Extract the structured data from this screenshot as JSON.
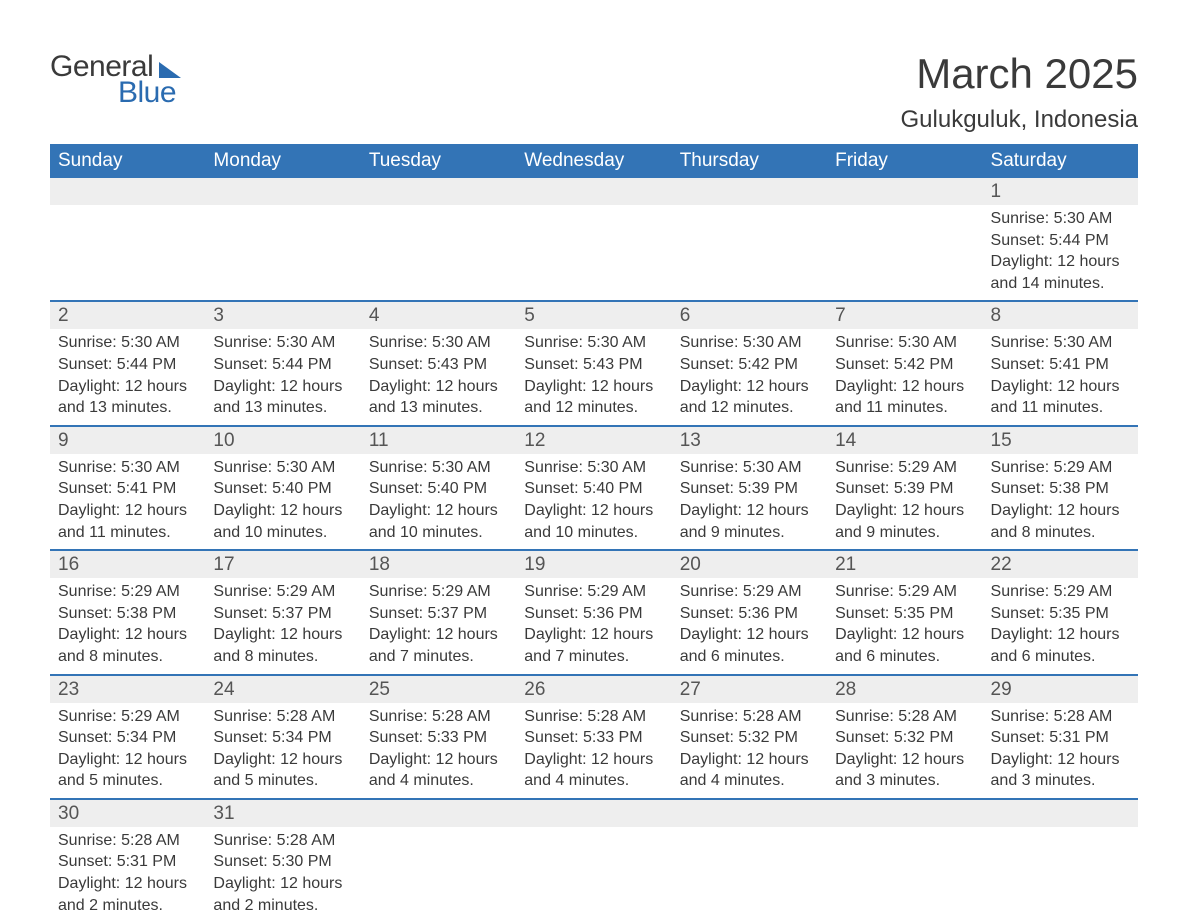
{
  "logo": {
    "text1": "General",
    "text2": "Blue"
  },
  "title": "March 2025",
  "location": "Gulukguluk, Indonesia",
  "colors": {
    "header_bg": "#3374b6",
    "header_text": "#ffffff",
    "daynum_bg": "#eeeeee",
    "border": "#3374b6",
    "text": "#3a3a3a",
    "logo_blue": "#2a6bb0"
  },
  "weekdays": [
    "Sunday",
    "Monday",
    "Tuesday",
    "Wednesday",
    "Thursday",
    "Friday",
    "Saturday"
  ],
  "weeks": [
    {
      "nums": [
        "",
        "",
        "",
        "",
        "",
        "",
        "1"
      ],
      "cells": [
        null,
        null,
        null,
        null,
        null,
        null,
        {
          "sunrise": "Sunrise: 5:30 AM",
          "sunset": "Sunset: 5:44 PM",
          "day1": "Daylight: 12 hours",
          "day2": "and 14 minutes."
        }
      ]
    },
    {
      "nums": [
        "2",
        "3",
        "4",
        "5",
        "6",
        "7",
        "8"
      ],
      "cells": [
        {
          "sunrise": "Sunrise: 5:30 AM",
          "sunset": "Sunset: 5:44 PM",
          "day1": "Daylight: 12 hours",
          "day2": "and 13 minutes."
        },
        {
          "sunrise": "Sunrise: 5:30 AM",
          "sunset": "Sunset: 5:44 PM",
          "day1": "Daylight: 12 hours",
          "day2": "and 13 minutes."
        },
        {
          "sunrise": "Sunrise: 5:30 AM",
          "sunset": "Sunset: 5:43 PM",
          "day1": "Daylight: 12 hours",
          "day2": "and 13 minutes."
        },
        {
          "sunrise": "Sunrise: 5:30 AM",
          "sunset": "Sunset: 5:43 PM",
          "day1": "Daylight: 12 hours",
          "day2": "and 12 minutes."
        },
        {
          "sunrise": "Sunrise: 5:30 AM",
          "sunset": "Sunset: 5:42 PM",
          "day1": "Daylight: 12 hours",
          "day2": "and 12 minutes."
        },
        {
          "sunrise": "Sunrise: 5:30 AM",
          "sunset": "Sunset: 5:42 PM",
          "day1": "Daylight: 12 hours",
          "day2": "and 11 minutes."
        },
        {
          "sunrise": "Sunrise: 5:30 AM",
          "sunset": "Sunset: 5:41 PM",
          "day1": "Daylight: 12 hours",
          "day2": "and 11 minutes."
        }
      ]
    },
    {
      "nums": [
        "9",
        "10",
        "11",
        "12",
        "13",
        "14",
        "15"
      ],
      "cells": [
        {
          "sunrise": "Sunrise: 5:30 AM",
          "sunset": "Sunset: 5:41 PM",
          "day1": "Daylight: 12 hours",
          "day2": "and 11 minutes."
        },
        {
          "sunrise": "Sunrise: 5:30 AM",
          "sunset": "Sunset: 5:40 PM",
          "day1": "Daylight: 12 hours",
          "day2": "and 10 minutes."
        },
        {
          "sunrise": "Sunrise: 5:30 AM",
          "sunset": "Sunset: 5:40 PM",
          "day1": "Daylight: 12 hours",
          "day2": "and 10 minutes."
        },
        {
          "sunrise": "Sunrise: 5:30 AM",
          "sunset": "Sunset: 5:40 PM",
          "day1": "Daylight: 12 hours",
          "day2": "and 10 minutes."
        },
        {
          "sunrise": "Sunrise: 5:30 AM",
          "sunset": "Sunset: 5:39 PM",
          "day1": "Daylight: 12 hours",
          "day2": "and 9 minutes."
        },
        {
          "sunrise": "Sunrise: 5:29 AM",
          "sunset": "Sunset: 5:39 PM",
          "day1": "Daylight: 12 hours",
          "day2": "and 9 minutes."
        },
        {
          "sunrise": "Sunrise: 5:29 AM",
          "sunset": "Sunset: 5:38 PM",
          "day1": "Daylight: 12 hours",
          "day2": "and 8 minutes."
        }
      ]
    },
    {
      "nums": [
        "16",
        "17",
        "18",
        "19",
        "20",
        "21",
        "22"
      ],
      "cells": [
        {
          "sunrise": "Sunrise: 5:29 AM",
          "sunset": "Sunset: 5:38 PM",
          "day1": "Daylight: 12 hours",
          "day2": "and 8 minutes."
        },
        {
          "sunrise": "Sunrise: 5:29 AM",
          "sunset": "Sunset: 5:37 PM",
          "day1": "Daylight: 12 hours",
          "day2": "and 8 minutes."
        },
        {
          "sunrise": "Sunrise: 5:29 AM",
          "sunset": "Sunset: 5:37 PM",
          "day1": "Daylight: 12 hours",
          "day2": "and 7 minutes."
        },
        {
          "sunrise": "Sunrise: 5:29 AM",
          "sunset": "Sunset: 5:36 PM",
          "day1": "Daylight: 12 hours",
          "day2": "and 7 minutes."
        },
        {
          "sunrise": "Sunrise: 5:29 AM",
          "sunset": "Sunset: 5:36 PM",
          "day1": "Daylight: 12 hours",
          "day2": "and 6 minutes."
        },
        {
          "sunrise": "Sunrise: 5:29 AM",
          "sunset": "Sunset: 5:35 PM",
          "day1": "Daylight: 12 hours",
          "day2": "and 6 minutes."
        },
        {
          "sunrise": "Sunrise: 5:29 AM",
          "sunset": "Sunset: 5:35 PM",
          "day1": "Daylight: 12 hours",
          "day2": "and 6 minutes."
        }
      ]
    },
    {
      "nums": [
        "23",
        "24",
        "25",
        "26",
        "27",
        "28",
        "29"
      ],
      "cells": [
        {
          "sunrise": "Sunrise: 5:29 AM",
          "sunset": "Sunset: 5:34 PM",
          "day1": "Daylight: 12 hours",
          "day2": "and 5 minutes."
        },
        {
          "sunrise": "Sunrise: 5:28 AM",
          "sunset": "Sunset: 5:34 PM",
          "day1": "Daylight: 12 hours",
          "day2": "and 5 minutes."
        },
        {
          "sunrise": "Sunrise: 5:28 AM",
          "sunset": "Sunset: 5:33 PM",
          "day1": "Daylight: 12 hours",
          "day2": "and 4 minutes."
        },
        {
          "sunrise": "Sunrise: 5:28 AM",
          "sunset": "Sunset: 5:33 PM",
          "day1": "Daylight: 12 hours",
          "day2": "and 4 minutes."
        },
        {
          "sunrise": "Sunrise: 5:28 AM",
          "sunset": "Sunset: 5:32 PM",
          "day1": "Daylight: 12 hours",
          "day2": "and 4 minutes."
        },
        {
          "sunrise": "Sunrise: 5:28 AM",
          "sunset": "Sunset: 5:32 PM",
          "day1": "Daylight: 12 hours",
          "day2": "and 3 minutes."
        },
        {
          "sunrise": "Sunrise: 5:28 AM",
          "sunset": "Sunset: 5:31 PM",
          "day1": "Daylight: 12 hours",
          "day2": "and 3 minutes."
        }
      ]
    },
    {
      "nums": [
        "30",
        "31",
        "",
        "",
        "",
        "",
        ""
      ],
      "cells": [
        {
          "sunrise": "Sunrise: 5:28 AM",
          "sunset": "Sunset: 5:31 PM",
          "day1": "Daylight: 12 hours",
          "day2": "and 2 minutes."
        },
        {
          "sunrise": "Sunrise: 5:28 AM",
          "sunset": "Sunset: 5:30 PM",
          "day1": "Daylight: 12 hours",
          "day2": "and 2 minutes."
        },
        null,
        null,
        null,
        null,
        null
      ]
    }
  ]
}
